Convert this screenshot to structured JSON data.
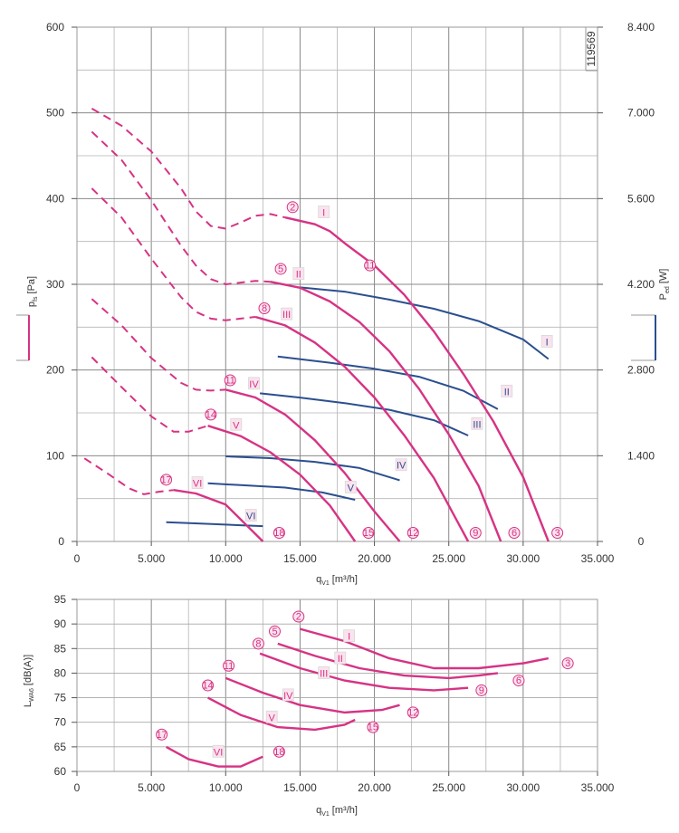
{
  "chart_data": [
    {
      "type": "line",
      "x_axis": {
        "label": "q",
        "sub": "V1",
        "unit": " [m³/h]",
        "range": [
          0,
          35000
        ],
        "ticks": [
          "0",
          "5.000",
          "10.000",
          "15.000",
          "20.000",
          "25.000",
          "30.000",
          "35.000"
        ]
      },
      "y_left": {
        "label": "p",
        "sub": "fs",
        "unit": " [Pa]",
        "range": [
          0,
          600
        ],
        "ticks": [
          "0",
          "100",
          "200",
          "300",
          "400",
          "500",
          "600"
        ]
      },
      "y_right": {
        "label": "P",
        "sub": "ed",
        "unit": " [W]",
        "range": [
          0,
          8400
        ],
        "ticks": [
          "0",
          "1.400",
          "2.800",
          "4.200",
          "5.600",
          "7.000",
          "8.400"
        ]
      },
      "id_label": "119569",
      "grid": true,
      "colors": {
        "pressure": "#d63384",
        "power": "#2b4f8f"
      },
      "pressure_curves": [
        {
          "name": "I",
          "dashed": [
            [
              1000,
              505
            ],
            [
              3000,
              485
            ],
            [
              5000,
              455
            ],
            [
              7000,
              412
            ],
            [
              8000,
              385
            ],
            [
              9000,
              368
            ],
            [
              10000,
              365
            ],
            [
              11000,
              372
            ],
            [
              12000,
              380
            ],
            [
              13000,
              382
            ],
            [
              14000,
              378
            ]
          ],
          "solid": [
            [
              14000,
              378
            ],
            [
              16000,
              370
            ],
            [
              17000,
              362
            ],
            [
              18000,
              348
            ],
            [
              20000,
              322
            ],
            [
              22000,
              288
            ],
            [
              24000,
              245
            ],
            [
              26000,
              195
            ],
            [
              28000,
              140
            ],
            [
              30000,
              75
            ],
            [
              31700,
              0
            ]
          ]
        },
        {
          "name": "II",
          "dashed": [
            [
              1000,
              478
            ],
            [
              3000,
              445
            ],
            [
              5000,
              398
            ],
            [
              7000,
              345
            ],
            [
              8000,
              322
            ],
            [
              9000,
              306
            ],
            [
              10000,
              300
            ],
            [
              11000,
              302
            ],
            [
              12000,
              304
            ],
            [
              13000,
              303
            ]
          ],
          "solid": [
            [
              13000,
              303
            ],
            [
              15000,
              296
            ],
            [
              17000,
              280
            ],
            [
              19000,
              256
            ],
            [
              21000,
              222
            ],
            [
              23000,
              178
            ],
            [
              25000,
              125
            ],
            [
              27000,
              65
            ],
            [
              28500,
              0
            ]
          ]
        },
        {
          "name": "III",
          "dashed": [
            [
              1000,
              412
            ],
            [
              3000,
              378
            ],
            [
              5000,
              330
            ],
            [
              7000,
              285
            ],
            [
              8000,
              268
            ],
            [
              9000,
              260
            ],
            [
              10000,
              258
            ],
            [
              11000,
              260
            ],
            [
              12000,
              262
            ]
          ],
          "solid": [
            [
              12000,
              262
            ],
            [
              14000,
              252
            ],
            [
              16000,
              232
            ],
            [
              18000,
              204
            ],
            [
              20000,
              168
            ],
            [
              22000,
              124
            ],
            [
              24000,
              74
            ],
            [
              26300,
              0
            ]
          ]
        },
        {
          "name": "IV",
          "dashed": [
            [
              1000,
              283
            ],
            [
              3000,
              252
            ],
            [
              5000,
              214
            ],
            [
              7000,
              185
            ],
            [
              8000,
              177
            ],
            [
              9000,
              176
            ],
            [
              10000,
              177
            ]
          ],
          "solid": [
            [
              10000,
              177
            ],
            [
              12000,
              168
            ],
            [
              14000,
              148
            ],
            [
              16000,
              118
            ],
            [
              18000,
              80
            ],
            [
              20000,
              35
            ],
            [
              21700,
              0
            ]
          ]
        },
        {
          "name": "V",
          "dashed": [
            [
              1000,
              215
            ],
            [
              3000,
              180
            ],
            [
              5000,
              146
            ],
            [
              6500,
              128
            ],
            [
              7500,
              128
            ],
            [
              8800,
              135
            ]
          ],
          "solid": [
            [
              8800,
              135
            ],
            [
              11000,
              123
            ],
            [
              13000,
              104
            ],
            [
              15000,
              78
            ],
            [
              17000,
              42
            ],
            [
              18700,
              0
            ]
          ]
        },
        {
          "name": "VI",
          "dashed": [
            [
              500,
              97
            ],
            [
              2000,
              80
            ],
            [
              3500,
              62
            ],
            [
              4500,
              55
            ],
            [
              5500,
              58
            ],
            [
              6500,
              60
            ]
          ],
          "solid": [
            [
              6500,
              60
            ],
            [
              8000,
              56
            ],
            [
              10000,
              43
            ],
            [
              12500,
              0
            ]
          ]
        }
      ],
      "power_curves": [
        {
          "name": "I",
          "points": [
            [
              15000,
              4150
            ],
            [
              18000,
              4080
            ],
            [
              21000,
              3950
            ],
            [
              24000,
              3800
            ],
            [
              27000,
              3600
            ],
            [
              30000,
              3300
            ],
            [
              31700,
              2980
            ]
          ]
        },
        {
          "name": "II",
          "points": [
            [
              13500,
              3020
            ],
            [
              17000,
              2920
            ],
            [
              20000,
              2820
            ],
            [
              23000,
              2690
            ],
            [
              26000,
              2460
            ],
            [
              28300,
              2160
            ]
          ]
        },
        {
          "name": "III",
          "points": [
            [
              12300,
              2420
            ],
            [
              15000,
              2350
            ],
            [
              18000,
              2260
            ],
            [
              21000,
              2150
            ],
            [
              24000,
              1980
            ],
            [
              26300,
              1730
            ]
          ]
        },
        {
          "name": "IV",
          "points": [
            [
              10000,
              1390
            ],
            [
              13000,
              1360
            ],
            [
              16000,
              1300
            ],
            [
              19000,
              1200
            ],
            [
              21700,
              1000
            ]
          ]
        },
        {
          "name": "V",
          "points": [
            [
              8800,
              950
            ],
            [
              11000,
              920
            ],
            [
              14000,
              880
            ],
            [
              16500,
              800
            ],
            [
              18700,
              680
            ]
          ]
        },
        {
          "name": "VI",
          "points": [
            [
              6000,
              315
            ],
            [
              8500,
              290
            ],
            [
              11000,
              265
            ],
            [
              12500,
              250
            ]
          ]
        }
      ],
      "point_markers": [
        {
          "text": "2",
          "x": 14500,
          "y": 390
        },
        {
          "text": "5",
          "x": 13700,
          "y": 318
        },
        {
          "text": "8",
          "x": 12600,
          "y": 272
        },
        {
          "text": "11",
          "x": 10300,
          "y": 188
        },
        {
          "text": "14",
          "x": 9000,
          "y": 148
        },
        {
          "text": "17",
          "x": 6000,
          "y": 72
        },
        {
          "text": "11",
          "x": 19700,
          "y": 322
        },
        {
          "text": "18",
          "x": 13600,
          "y": 10
        },
        {
          "text": "15",
          "x": 19600,
          "y": 10
        },
        {
          "text": "12",
          "x": 22600,
          "y": 10
        },
        {
          "text": "9",
          "x": 26800,
          "y": 10
        },
        {
          "text": "6",
          "x": 29400,
          "y": 10
        },
        {
          "text": "3",
          "x": 32300,
          "y": 10
        }
      ],
      "curve_tags": [
        {
          "text": "I",
          "x": 16600,
          "y": 384
        },
        {
          "text": "II",
          "x": 14900,
          "y": 312
        },
        {
          "text": "III",
          "x": 14100,
          "y": 265
        },
        {
          "text": "IV",
          "x": 11900,
          "y": 184
        },
        {
          "text": "V",
          "x": 10700,
          "y": 136
        },
        {
          "text": "VI",
          "x": 8100,
          "y": 68
        },
        {
          "text": "I",
          "x": 31600,
          "y": 233
        },
        {
          "text": "II",
          "x": 28900,
          "y": 175
        },
        {
          "text": "III",
          "x": 26900,
          "y": 137
        },
        {
          "text": "IV",
          "x": 21800,
          "y": 89
        },
        {
          "text": "V",
          "x": 18400,
          "y": 63
        },
        {
          "text": "VI",
          "x": 11700,
          "y": 30
        }
      ]
    },
    {
      "type": "line",
      "x_axis": {
        "label": "q",
        "sub": "V1",
        "unit": " [m³/h]",
        "range": [
          0,
          35000
        ],
        "ticks": [
          "0",
          "5.000",
          "10.000",
          "15.000",
          "20.000",
          "25.000",
          "30.000",
          "35.000"
        ]
      },
      "y_axis": {
        "label": "L",
        "sub": "WA6",
        "unit": " [dB(A)]",
        "range": [
          60,
          95
        ],
        "ticks": [
          "60",
          "65",
          "70",
          "75",
          "80",
          "85",
          "90",
          "95"
        ]
      },
      "grid": true,
      "series": [
        {
          "name": "I",
          "points": [
            [
              15000,
              89
            ],
            [
              18000,
              86.5
            ],
            [
              21000,
              83
            ],
            [
              24000,
              81
            ],
            [
              27000,
              81
            ],
            [
              30000,
              82
            ],
            [
              31700,
              83
            ]
          ]
        },
        {
          "name": "II",
          "points": [
            [
              13500,
              86
            ],
            [
              16000,
              83.5
            ],
            [
              19000,
              81
            ],
            [
              22000,
              79.5
            ],
            [
              25000,
              79
            ],
            [
              27000,
              79.5
            ],
            [
              28300,
              80
            ]
          ]
        },
        {
          "name": "III",
          "points": [
            [
              12300,
              84
            ],
            [
              15000,
              81
            ],
            [
              18000,
              78.5
            ],
            [
              21000,
              77
            ],
            [
              24000,
              76.5
            ],
            [
              26300,
              77
            ]
          ]
        },
        {
          "name": "IV",
          "points": [
            [
              10000,
              79
            ],
            [
              12500,
              76
            ],
            [
              15000,
              73.5
            ],
            [
              18000,
              72
            ],
            [
              20500,
              72.5
            ],
            [
              21700,
              73.5
            ]
          ]
        },
        {
          "name": "V",
          "points": [
            [
              8800,
              75
            ],
            [
              11000,
              71.5
            ],
            [
              13500,
              69
            ],
            [
              16000,
              68.5
            ],
            [
              18000,
              69.5
            ],
            [
              18700,
              70.5
            ]
          ]
        },
        {
          "name": "VI",
          "points": [
            [
              6000,
              65
            ],
            [
              7500,
              62.5
            ],
            [
              9500,
              61
            ],
            [
              11000,
              61
            ],
            [
              12500,
              63
            ]
          ]
        }
      ],
      "point_markers": [
        {
          "text": "2",
          "x": 14900,
          "y": 91.5
        },
        {
          "text": "5",
          "x": 13300,
          "y": 88.5
        },
        {
          "text": "8",
          "x": 12200,
          "y": 86
        },
        {
          "text": "11",
          "x": 10200,
          "y": 81.5
        },
        {
          "text": "14",
          "x": 8800,
          "y": 77.5
        },
        {
          "text": "17",
          "x": 5700,
          "y": 67.5
        },
        {
          "text": "3",
          "x": 33000,
          "y": 82
        },
        {
          "text": "6",
          "x": 29700,
          "y": 78.5
        },
        {
          "text": "9",
          "x": 27200,
          "y": 76.5
        },
        {
          "text": "12",
          "x": 22600,
          "y": 72
        },
        {
          "text": "15",
          "x": 19900,
          "y": 69
        },
        {
          "text": "18",
          "x": 13600,
          "y": 64
        }
      ],
      "curve_tags": [
        {
          "text": "I",
          "x": 18300,
          "y": 87.5
        },
        {
          "text": "II",
          "x": 17700,
          "y": 83
        },
        {
          "text": "III",
          "x": 16600,
          "y": 80
        },
        {
          "text": "IV",
          "x": 14200,
          "y": 75.5
        },
        {
          "text": "V",
          "x": 13100,
          "y": 71
        },
        {
          "text": "VI",
          "x": 9500,
          "y": 64
        }
      ]
    }
  ]
}
